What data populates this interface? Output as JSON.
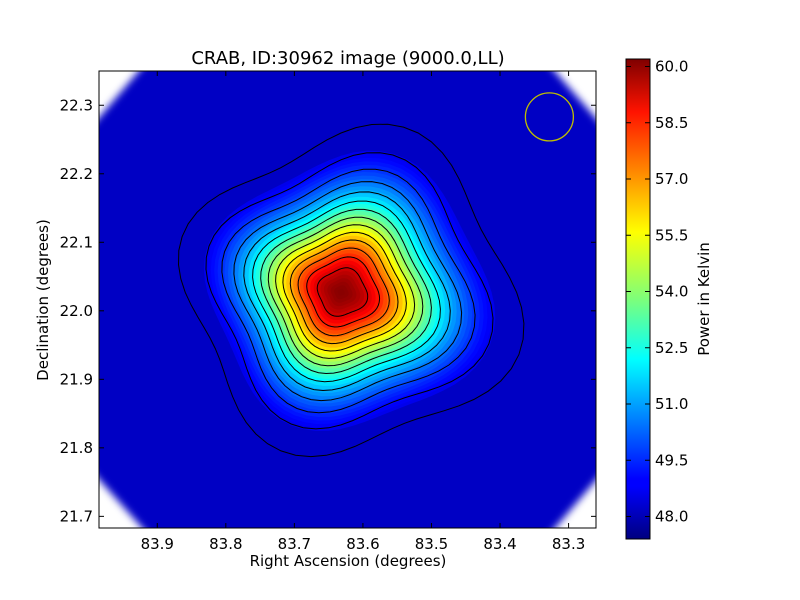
{
  "chart_data": {
    "type": "heatmap",
    "title": "CRAB, ID:30962 image (9000.0,LL)",
    "xlabel": "Right Ascension (degrees)",
    "ylabel": "Declination (degrees)",
    "colorbar_label": "Power in Kelvin",
    "colormap": "jet",
    "xlim": [
      83.985,
      83.26
    ],
    "ylim": [
      21.683,
      22.35
    ],
    "x_ticks": [
      {
        "value": 83.9,
        "label": "83.9"
      },
      {
        "value": 83.8,
        "label": "83.8"
      },
      {
        "value": 83.7,
        "label": "83.7"
      },
      {
        "value": 83.6,
        "label": "83.6"
      },
      {
        "value": 83.5,
        "label": "83.5"
      },
      {
        "value": 83.4,
        "label": "83.4"
      },
      {
        "value": 83.3,
        "label": "83.3"
      }
    ],
    "y_ticks": [
      {
        "value": 21.7,
        "label": "21.7"
      },
      {
        "value": 21.8,
        "label": "21.8"
      },
      {
        "value": 21.9,
        "label": "21.9"
      },
      {
        "value": 22.0,
        "label": "22.0"
      },
      {
        "value": 22.1,
        "label": "22.1"
      },
      {
        "value": 22.2,
        "label": "22.2"
      },
      {
        "value": 22.3,
        "label": "22.3"
      }
    ],
    "colorbar_range": [
      47.4,
      60.2
    ],
    "colorbar_ticks": [
      {
        "value": 48.0,
        "label": "48.0"
      },
      {
        "value": 49.5,
        "label": "49.5"
      },
      {
        "value": 51.0,
        "label": "51.0"
      },
      {
        "value": 52.5,
        "label": "52.5"
      },
      {
        "value": 54.0,
        "label": "54.0"
      },
      {
        "value": 55.5,
        "label": "55.5"
      },
      {
        "value": 57.0,
        "label": "57.0"
      },
      {
        "value": 58.5,
        "label": "58.5"
      },
      {
        "value": 60.0,
        "label": "60.0"
      }
    ],
    "source": {
      "ra": 83.632,
      "dec": 22.027,
      "peak": 60.1,
      "background": 47.6
    },
    "contour_count": 14,
    "beam_circle": {
      "ra": 83.328,
      "dec": 22.283,
      "radius_deg": 0.035,
      "color": "#bfbf00"
    },
    "grid": false
  }
}
